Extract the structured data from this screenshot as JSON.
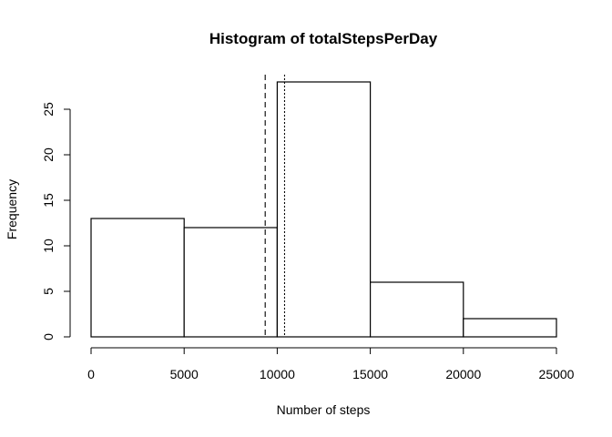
{
  "chart_data": {
    "type": "bar",
    "title": "Histogram of totalStepsPerDay",
    "xlabel": "Number of steps",
    "ylabel": "Frequency",
    "bins": [
      {
        "start": 0,
        "end": 5000,
        "count": 13
      },
      {
        "start": 5000,
        "end": 10000,
        "count": 12
      },
      {
        "start": 10000,
        "end": 15000,
        "count": 28
      },
      {
        "start": 15000,
        "end": 20000,
        "count": 6
      },
      {
        "start": 20000,
        "end": 25000,
        "count": 2
      }
    ],
    "xlim": [
      0,
      25000
    ],
    "ylim": [
      0,
      28
    ],
    "x_ticks": [
      0,
      5000,
      10000,
      15000,
      20000,
      25000
    ],
    "x_tick_labels": [
      "0",
      "5000",
      "10000",
      "15000",
      "20000",
      "25000"
    ],
    "y_ticks": [
      0,
      5,
      10,
      15,
      20,
      25
    ],
    "y_tick_labels": [
      "0",
      "5",
      "10",
      "15",
      "20",
      "25"
    ],
    "reference_lines": [
      {
        "x": 9354,
        "style": "dashed"
      },
      {
        "x": 10395,
        "style": "dotted"
      }
    ],
    "bar_fill": "#ffffff",
    "bar_stroke": "#000000",
    "grid": false,
    "legend": "none"
  }
}
